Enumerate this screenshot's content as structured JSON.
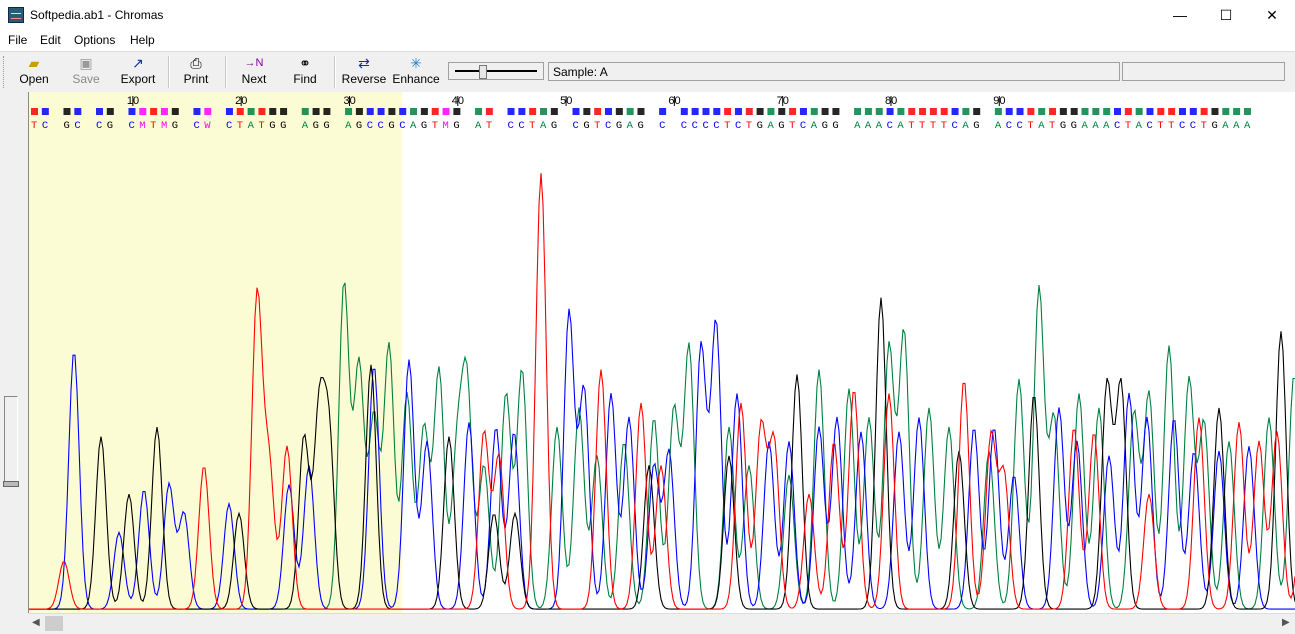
{
  "window": {
    "title": "Softpedia.ab1 - Chromas",
    "minimize": "—",
    "maximize": "☐",
    "close": "✕"
  },
  "menu": [
    "File",
    "Edit",
    "Options",
    "Help"
  ],
  "toolbar": {
    "open": "Open",
    "save": "Save",
    "export": "Export",
    "print": "Print",
    "next": "Next",
    "find": "Find",
    "reverse": "Reverse",
    "enhance": "Enhance"
  },
  "icons": {
    "open": "folder-open-icon",
    "save": "floppy-disk-icon",
    "export": "export-arrow-icon",
    "print": "printer-icon",
    "next": "next-ambiguity-icon",
    "find": "binoculars-icon",
    "reverse": "reverse-arrows-icon",
    "enhance": "sparkle-wand-icon"
  },
  "sample": "Sample: A",
  "colors": {
    "A": "#008040",
    "C": "#0000ff",
    "G": "#000000",
    "T": "#ff0000",
    "N": "#ff00ff",
    "selection": "#fcfcd4"
  },
  "chart_data": {
    "type": "line",
    "title": "",
    "xlabel": "",
    "ylabel": "",
    "ruler_ticks": [
      10,
      20,
      30,
      40,
      50,
      60,
      70,
      80,
      90
    ],
    "highlighted_range_bases": [
      1,
      34
    ],
    "sequence": [
      "T",
      "C",
      "",
      "G",
      "C",
      "",
      "C",
      "G",
      "",
      "C",
      "M",
      "T",
      "M",
      "G",
      "",
      "C",
      "W",
      "",
      "C",
      "T",
      "A",
      "T",
      "G",
      "G",
      "",
      "A",
      "G",
      "G",
      "",
      "A",
      "G",
      "C",
      "C",
      "G",
      "C",
      "A",
      "G",
      "T",
      "M",
      "G",
      "",
      "A",
      "T",
      "",
      "C",
      "C",
      "T",
      "A",
      "G",
      "",
      "C",
      "G",
      "T",
      "C",
      "G",
      "A",
      "G",
      "",
      "C",
      "",
      "C",
      "C",
      "C",
      "C",
      "T",
      "C",
      "T",
      "G",
      "A",
      "G",
      "T",
      "C",
      "A",
      "G",
      "G",
      "",
      "A",
      "A",
      "A",
      "C",
      "A",
      "T",
      "T",
      "T",
      "T",
      "C",
      "A",
      "G",
      "",
      "A",
      "C",
      "C",
      "T",
      "A",
      "T",
      "G",
      "G",
      "A",
      "A",
      "A",
      "C",
      "T",
      "A",
      "C",
      "T",
      "T",
      "C",
      "C",
      "T",
      "G",
      "A",
      "A",
      "A"
    ],
    "ylim": [
      0,
      1
    ],
    "series": [
      {
        "name": "A",
        "peaks": [
          [
            315,
            0.68
          ],
          [
            330,
            0.51
          ],
          [
            345,
            0.4
          ],
          [
            360,
            0.55
          ],
          [
            378,
            0.45
          ],
          [
            395,
            0.38
          ],
          [
            410,
            0.5
          ],
          [
            428,
            0.32
          ],
          [
            438,
            0.46
          ],
          [
            455,
            0.3
          ],
          [
            477,
            0.45
          ],
          [
            493,
            0.5
          ],
          [
            528,
            0.38
          ],
          [
            550,
            0.42
          ],
          [
            568,
            0.32
          ],
          [
            595,
            0.35
          ],
          [
            625,
            0.4
          ],
          [
            645,
            0.42
          ],
          [
            660,
            0.55
          ],
          [
            700,
            0.38
          ],
          [
            720,
            0.3
          ],
          [
            760,
            0.28
          ],
          [
            790,
            0.5
          ],
          [
            820,
            0.46
          ],
          [
            840,
            0.4
          ],
          [
            860,
            0.55
          ],
          [
            875,
            0.58
          ],
          [
            900,
            0.42
          ],
          [
            920,
            0.38
          ],
          [
            960,
            0.33
          ],
          [
            990,
            0.48
          ],
          [
            1010,
            0.67
          ],
          [
            1025,
            0.4
          ],
          [
            1050,
            0.45
          ],
          [
            1070,
            0.42
          ],
          [
            1105,
            0.41
          ],
          [
            1120,
            0.45
          ],
          [
            1140,
            0.55
          ],
          [
            1160,
            0.48
          ],
          [
            1175,
            0.39
          ],
          [
            1200,
            0.35
          ],
          [
            1240,
            0.4
          ],
          [
            1265,
            0.49
          ],
          [
            1285,
            0.32
          ]
        ]
      },
      {
        "name": "C",
        "peaks": [
          [
            45,
            0.54
          ],
          [
            90,
            0.16
          ],
          [
            115,
            0.25
          ],
          [
            140,
            0.26
          ],
          [
            155,
            0.2
          ],
          [
            200,
            0.22
          ],
          [
            260,
            0.26
          ],
          [
            280,
            0.3
          ],
          [
            345,
            0.51
          ],
          [
            380,
            0.52
          ],
          [
            398,
            0.35
          ],
          [
            440,
            0.39
          ],
          [
            467,
            0.38
          ],
          [
            485,
            0.37
          ],
          [
            540,
            0.62
          ],
          [
            555,
            0.46
          ],
          [
            582,
            0.45
          ],
          [
            600,
            0.4
          ],
          [
            625,
            0.3
          ],
          [
            640,
            0.33
          ],
          [
            672,
            0.55
          ],
          [
            687,
            0.6
          ],
          [
            708,
            0.45
          ],
          [
            740,
            0.35
          ],
          [
            760,
            0.35
          ],
          [
            790,
            0.38
          ],
          [
            808,
            0.4
          ],
          [
            832,
            0.37
          ],
          [
            870,
            0.37
          ],
          [
            890,
            0.4
          ],
          [
            945,
            0.38
          ],
          [
            965,
            0.38
          ],
          [
            985,
            0.28
          ],
          [
            1030,
            0.42
          ],
          [
            1048,
            0.35
          ],
          [
            1080,
            0.32
          ],
          [
            1100,
            0.45
          ],
          [
            1118,
            0.4
          ],
          [
            1145,
            0.4
          ],
          [
            1165,
            0.33
          ],
          [
            1190,
            0.33
          ],
          [
            1220,
            0.34
          ]
        ]
      },
      {
        "name": "G",
        "peaks": [
          [
            72,
            0.36
          ],
          [
            100,
            0.24
          ],
          [
            128,
            0.38
          ],
          [
            210,
            0.2
          ],
          [
            275,
            0.36
          ],
          [
            290,
            0.4
          ],
          [
            300,
            0.36
          ],
          [
            342,
            0.51
          ],
          [
            420,
            0.36
          ],
          [
            465,
            0.2
          ],
          [
            486,
            0.2
          ],
          [
            620,
            0.3
          ],
          [
            700,
            0.32
          ],
          [
            768,
            0.49
          ],
          [
            852,
            0.65
          ],
          [
            930,
            0.33
          ],
          [
            1005,
            0.45
          ],
          [
            1078,
            0.47
          ],
          [
            1092,
            0.47
          ],
          [
            1190,
            0.42
          ],
          [
            1252,
            0.58
          ]
        ]
      },
      {
        "name": "T",
        "peaks": [
          [
            35,
            0.1
          ],
          [
            175,
            0.3
          ],
          [
            228,
            0.65
          ],
          [
            240,
            0.3
          ],
          [
            258,
            0.34
          ],
          [
            455,
            0.37
          ],
          [
            470,
            0.32
          ],
          [
            512,
            0.91
          ],
          [
            572,
            0.5
          ],
          [
            612,
            0.43
          ],
          [
            632,
            0.3
          ],
          [
            712,
            0.43
          ],
          [
            732,
            0.38
          ],
          [
            745,
            0.35
          ],
          [
            780,
            0.24
          ],
          [
            805,
            0.35
          ],
          [
            825,
            0.46
          ],
          [
            860,
            0.45
          ],
          [
            935,
            0.48
          ],
          [
            962,
            0.36
          ],
          [
            975,
            0.28
          ],
          [
            1045,
            0.38
          ],
          [
            1065,
            0.37
          ],
          [
            1120,
            0.24
          ],
          [
            1170,
            0.4
          ],
          [
            1210,
            0.39
          ],
          [
            1230,
            0.35
          ],
          [
            1248,
            0.37
          ],
          [
            1275,
            0.3
          ]
        ]
      }
    ]
  }
}
